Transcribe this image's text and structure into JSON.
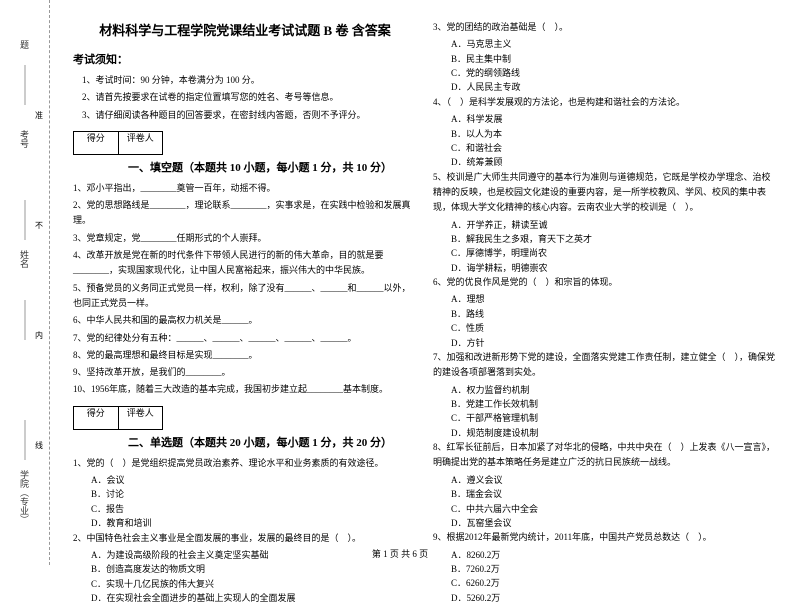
{
  "margin": {
    "labels": [
      "题",
      "考号",
      "姓名",
      "学院（专业）"
    ],
    "markers": [
      "准",
      "不",
      "内",
      "线"
    ]
  },
  "title": "材料科学与工程学院党课结业考试试题 B 卷 含答案",
  "instructions_head": "考试须知：",
  "instructions": [
    "1、考试时间：90 分钟，本卷满分为 100 分。",
    "2、请首先按要求在试卷的指定位置填写您的姓名、考号等信息。",
    "3、请仔细阅读各种题目的回答要求，在密封线内答题，否则不予评分。"
  ],
  "scorebox": {
    "col1": "得分",
    "col2": "评卷人"
  },
  "part1_title": "一、填空题（本题共 10 小题，每小题 1 分，共 10 分）",
  "part1": [
    "1、邓小平指出，________奠管一百年，动摇不得。",
    "2、党的思想路线是________，理论联系________，实事求是，在实践中检验和发展真理。",
    "3、党章规定，党________任期形式的个人崇拜。",
    "4、改革开放是党在新的时代条件下带领人民进行的新的伟大革命，目的就是要________，实现国家现代化，让中国人民富裕起来，振兴伟大的中华民族。",
    "5、预备党员的义务同正式党员一样，权利，除了没有______、______和______以外，也同正式党员一样。",
    "6、中华人民共和国的最高权力机关是______。",
    "7、党的纪律处分有五种：______、______、______、______、______。",
    "8、党的最高理想和最终目标是实现________。",
    "9、坚持改革开放，是我们的________。",
    "10、1956年底，随着三大改造的基本完成，我国初步建立起________基本制度。"
  ],
  "part2_title": "二、单选题（本题共 20 小题，每小题 1 分，共 20 分）",
  "part2_left": [
    {
      "q": "1、党的（　）是党组织提高党员政治素养、理论水平和业务素质的有效途径。",
      "opts": [
        "A．会议",
        "B．讨论",
        "C．报告",
        "D．教育和培训"
      ]
    },
    {
      "q": "2、中国特色社会主义事业是全面发展的事业，发展的最终目的是（　）。",
      "opts": [
        "A．为建设高级阶段的社会主义奠定坚实基础",
        "B．创造高度发达的物质文明",
        "C．实现十几亿民族的伟大复兴",
        "D．在实现社会全面进步的基础上实现人的全面发展"
      ]
    }
  ],
  "part2_right": [
    {
      "q": "3、党的团结的政治基础是（　）。",
      "opts": [
        "A．马克思主义",
        "B．民主集中制",
        "C．党的纲领路线",
        "D．人民民主专政"
      ]
    },
    {
      "q": "4、（　）是科学发展观的方法论，也是构建和谐社会的方法论。",
      "opts": [
        "A．科学发展",
        "B．以人为本",
        "C．和谐社会",
        "D．统筹兼顾"
      ]
    },
    {
      "q": "5、校训是广大师生共同遵守的基本行为准则与道德规范，它既是学校办学理念、治校精神的反映，也是校园文化建设的重要内容，是一所学校教风、学风、校风的集中表现，体现大学文化精神的核心内容。云南农业大学的校训是（　）。",
      "opts": [
        "A．开学养正，耕读至诚",
        "B．解我民生之多艰，育天下之英才",
        "C．厚德博学，明理尚农",
        "D．诲学耕耘，明德崇农"
      ]
    },
    {
      "q": "6、党的优良作风是党的（　）和宗旨的体现。",
      "opts": [
        "A．理想",
        "B．路线",
        "C．性质",
        "D．方针"
      ]
    },
    {
      "q": "7、加强和改进新形势下党的建设，全面落实党建工作责任制，建立健全（　），确保党的建设各项部署落到实处。",
      "opts": [
        "A．权力监督约机制",
        "B．党建工作长效机制",
        "C．干部严格管理机制",
        "D．规范制度建设机制"
      ]
    },
    {
      "q": "8、红军长征前后，日本加紧了对华北的侵略，中共中央在（　）上发表《八一宣言》，明确提出党的基本策略任务是建立广泛的抗日民族统一战线。",
      "opts": [
        "A．遵义会议",
        "B．瑞金会议",
        "C．中共六届六中全会",
        "D．瓦窑堡会议"
      ]
    },
    {
      "q": "9、根据2012年最新党内统计，2011年底，中国共产党员总数达（　）。",
      "opts": [
        "A．8260.2万",
        "B．7260.2万",
        "C．6260.2万",
        "D．5260.2万"
      ]
    }
  ],
  "footer": "第 1 页 共 6 页"
}
